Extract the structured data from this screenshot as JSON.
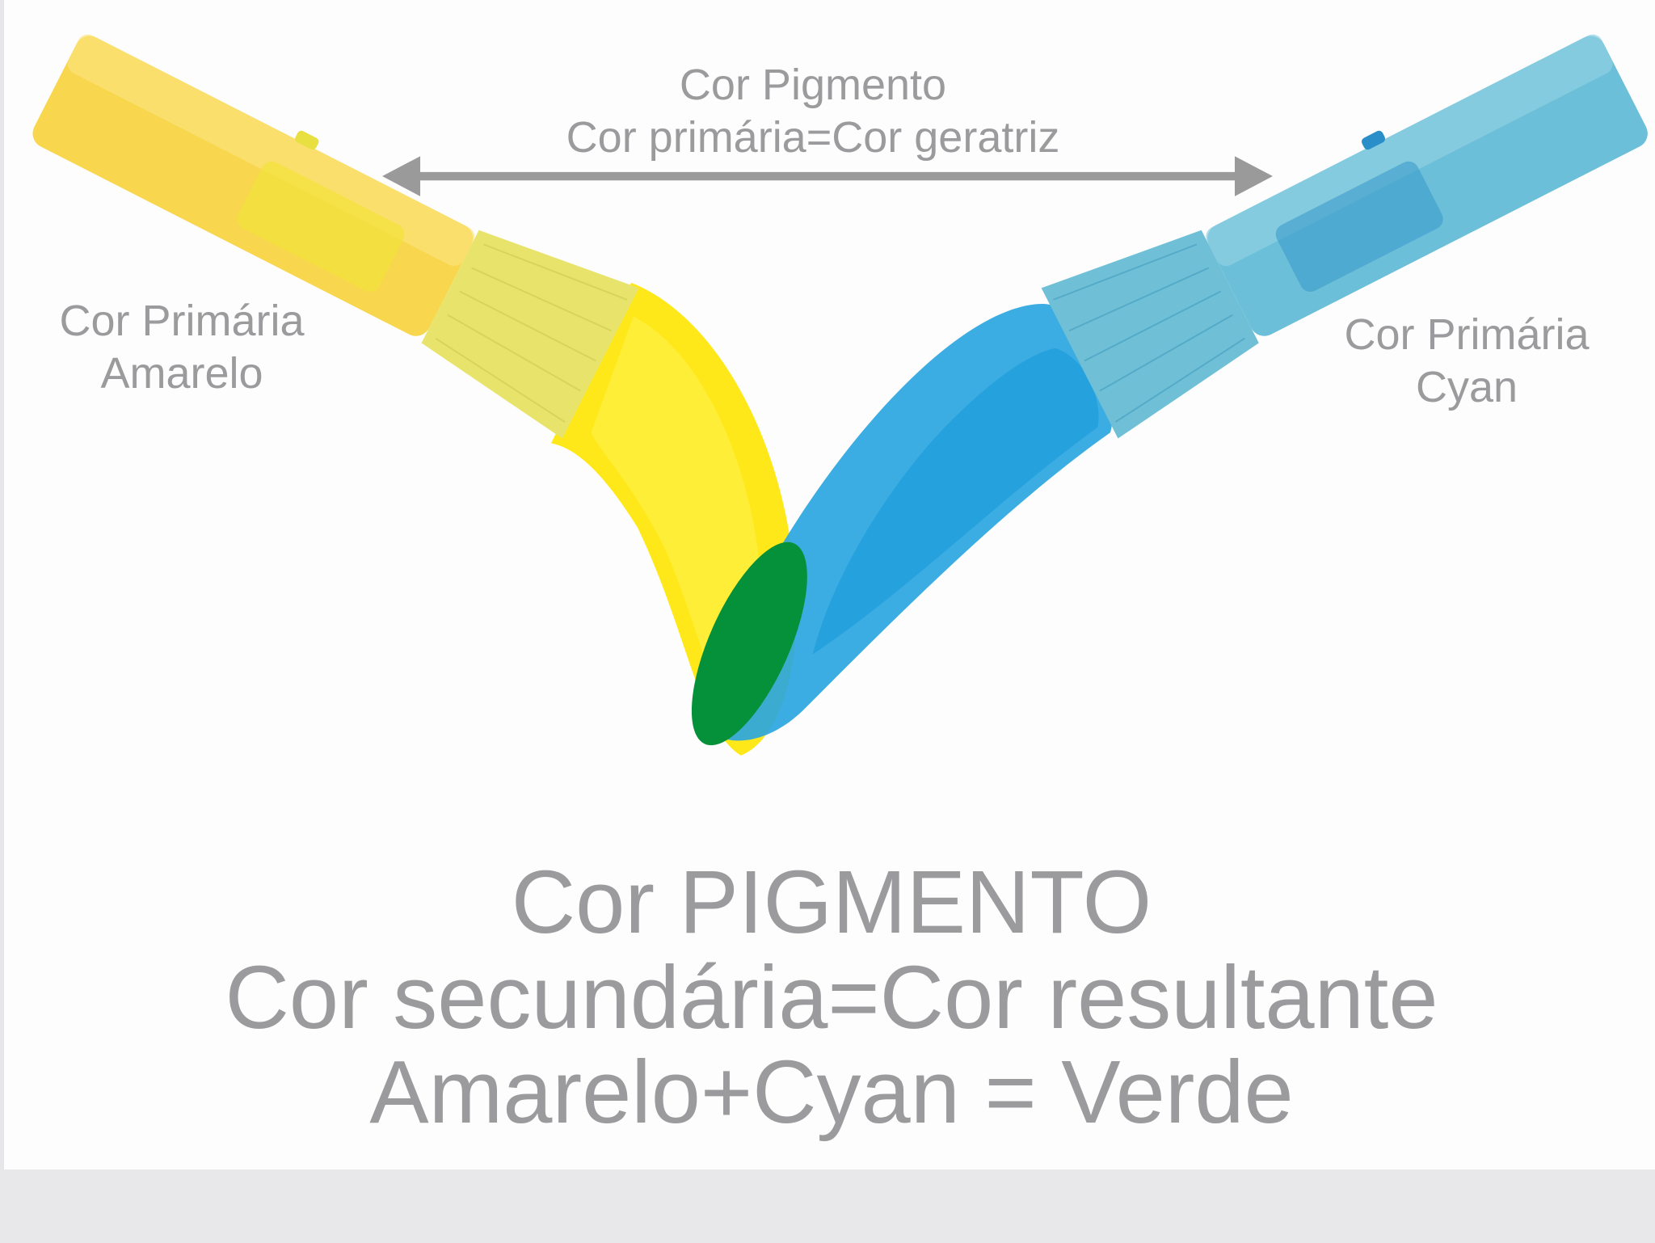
{
  "top_label": {
    "line1": "Cor Pigmento",
    "line2": "Cor primária=Cor geratriz"
  },
  "left_label": {
    "line1": "Cor Primária",
    "line2": "Amarelo"
  },
  "right_label": {
    "line1": "Cor Primária",
    "line2": "Cyan"
  },
  "bottom_text": {
    "line1": "Cor PIGMENTO",
    "line2": "Cor secundária=Cor resultante",
    "line3": "Amarelo+Cyan = Verde"
  },
  "colors": {
    "yellow": "#ffe81a",
    "cyan": "#2aa6e0",
    "green": "#05913a",
    "text": "#9b9b9d",
    "arrow": "#9a9a9a"
  }
}
